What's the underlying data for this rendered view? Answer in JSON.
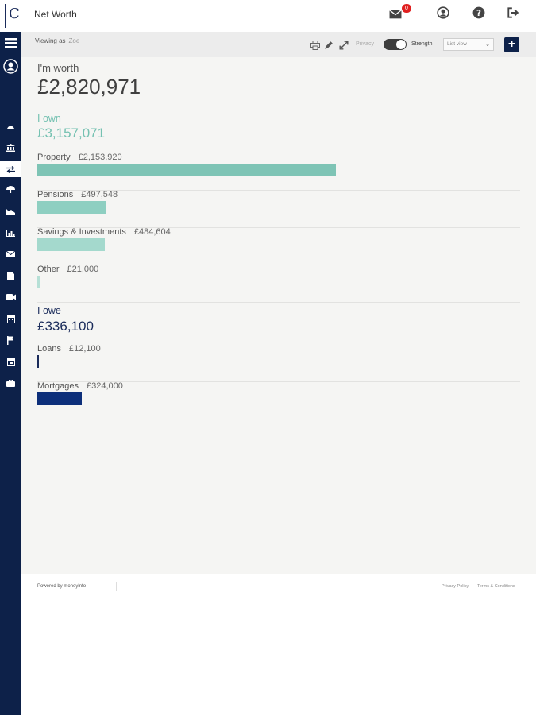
{
  "header": {
    "logo_letter": "C",
    "title": "Net Worth",
    "mail_badge": "0"
  },
  "toolbar": {
    "viewing_as_label": "Viewing as",
    "viewing_as_user": "Zoe",
    "privacy_label": "Privacy",
    "strength_label": "Strength",
    "view_select_value": "List view"
  },
  "summary": {
    "worth_label": "I'm worth",
    "worth_value": "£2,820,971",
    "own_label": "I own",
    "own_value": "£3,157,071",
    "owe_label": "I owe",
    "owe_value": "£336,100"
  },
  "assets": [
    {
      "label": "Property",
      "amount": "£2,153,920",
      "share_of_max": 1.0,
      "color": "#7ec4b5"
    },
    {
      "label": "Pensions",
      "amount": "£497,548",
      "share_of_max": 0.231,
      "color": "#8ecfc1"
    },
    {
      "label": "Savings & Investments",
      "amount": "£484,604",
      "share_of_max": 0.225,
      "color": "#a4d9cd"
    },
    {
      "label": "Other",
      "amount": "£21,000",
      "share_of_max": 0.01,
      "color": "#b6e0d6"
    }
  ],
  "liabilities": [
    {
      "label": "Loans",
      "amount": "£12,100",
      "share_of_max": 0.006,
      "color": "#1a2b5a"
    },
    {
      "label": "Mortgages",
      "amount": "£324,000",
      "share_of_max": 0.15,
      "color": "#0d2f7a"
    }
  ],
  "footer": {
    "powered_by": "Powered by moneyinfo",
    "privacy_policy": "Privacy Policy",
    "terms": "Terms & Conditions"
  },
  "colors": {
    "sidebar": "#0d2149",
    "own_accent": "#74c1b1",
    "owe_accent": "#1a2b5a",
    "badge": "#e02020"
  }
}
